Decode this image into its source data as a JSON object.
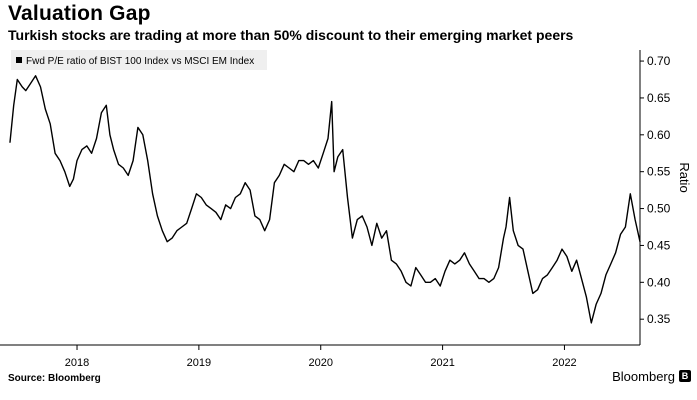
{
  "header": {
    "title": "Valuation Gap",
    "subtitle": "Turkish stocks are trading at more than 50% discount to their emerging market peers"
  },
  "footer": {
    "source": "Source: Bloomberg",
    "brand": "Bloomberg",
    "brand_logo_glyph": "B"
  },
  "colors": {
    "line": "#000000",
    "legend_bg": "#efefef",
    "axis": "#000000"
  },
  "chart_data": {
    "type": "line",
    "title": "Valuation Gap",
    "subtitle": "Turkish stocks are trading at more than 50% discount to their emerging market peers",
    "xlabel": "",
    "ylabel": "Ratio",
    "xlim": [
      2017.45,
      2022.62
    ],
    "ylim": [
      0.315,
      0.715
    ],
    "yaxis_side": "right",
    "legend": [
      {
        "name": "Fwd P/E ratio of BIST 100 Index vs MSCI EM Index",
        "position": "top-left"
      }
    ],
    "x_ticks": [
      {
        "value": 2018,
        "label": "2018"
      },
      {
        "value": 2019,
        "label": "2019"
      },
      {
        "value": 2020,
        "label": "2020"
      },
      {
        "value": 2021,
        "label": "2021"
      },
      {
        "value": 2022,
        "label": "2022"
      }
    ],
    "y_ticks": [
      {
        "value": 0.35,
        "label": "0.35"
      },
      {
        "value": 0.4,
        "label": "0.40"
      },
      {
        "value": 0.45,
        "label": "0.45"
      },
      {
        "value": 0.5,
        "label": "0.50"
      },
      {
        "value": 0.55,
        "label": "0.55"
      },
      {
        "value": 0.6,
        "label": "0.60"
      },
      {
        "value": 0.65,
        "label": "0.65"
      },
      {
        "value": 0.7,
        "label": "0.70"
      }
    ],
    "series": [
      {
        "name": "Fwd P/E ratio of BIST 100 Index vs MSCI EM Index",
        "x": [
          2017.45,
          2017.48,
          2017.51,
          2017.55,
          2017.58,
          2017.62,
          2017.66,
          2017.7,
          2017.74,
          2017.78,
          2017.82,
          2017.86,
          2017.9,
          2017.94,
          2017.97,
          2018.0,
          2018.04,
          2018.08,
          2018.12,
          2018.16,
          2018.2,
          2018.24,
          2018.27,
          2018.3,
          2018.34,
          2018.38,
          2018.42,
          2018.46,
          2018.5,
          2018.54,
          2018.58,
          2018.62,
          2018.66,
          2018.7,
          2018.74,
          2018.78,
          2018.82,
          2018.86,
          2018.9,
          2018.94,
          2018.98,
          2019.02,
          2019.06,
          2019.1,
          2019.14,
          2019.18,
          2019.22,
          2019.26,
          2019.3,
          2019.34,
          2019.38,
          2019.42,
          2019.46,
          2019.5,
          2019.54,
          2019.58,
          2019.62,
          2019.66,
          2019.7,
          2019.74,
          2019.78,
          2019.82,
          2019.86,
          2019.9,
          2019.94,
          2019.98,
          2020.02,
          2020.06,
          2020.09,
          2020.11,
          2020.14,
          2020.18,
          2020.22,
          2020.26,
          2020.3,
          2020.34,
          2020.38,
          2020.42,
          2020.46,
          2020.5,
          2020.54,
          2020.58,
          2020.62,
          2020.66,
          2020.7,
          2020.74,
          2020.78,
          2020.82,
          2020.86,
          2020.9,
          2020.94,
          2020.98,
          2021.02,
          2021.06,
          2021.1,
          2021.14,
          2021.18,
          2021.22,
          2021.26,
          2021.3,
          2021.34,
          2021.38,
          2021.42,
          2021.46,
          2021.5,
          2021.52,
          2021.55,
          2021.58,
          2021.62,
          2021.66,
          2021.7,
          2021.74,
          2021.78,
          2021.82,
          2021.86,
          2021.9,
          2021.94,
          2021.98,
          2022.02,
          2022.06,
          2022.1,
          2022.14,
          2022.18,
          2022.22,
          2022.26,
          2022.3,
          2022.34,
          2022.38,
          2022.42,
          2022.46,
          2022.5,
          2022.54,
          2022.58,
          2022.62
        ],
        "y": [
          0.59,
          0.64,
          0.675,
          0.665,
          0.66,
          0.67,
          0.68,
          0.665,
          0.635,
          0.615,
          0.575,
          0.565,
          0.55,
          0.53,
          0.54,
          0.565,
          0.58,
          0.585,
          0.575,
          0.595,
          0.63,
          0.64,
          0.6,
          0.58,
          0.56,
          0.555,
          0.545,
          0.565,
          0.61,
          0.6,
          0.565,
          0.52,
          0.49,
          0.47,
          0.455,
          0.46,
          0.47,
          0.475,
          0.48,
          0.5,
          0.52,
          0.515,
          0.505,
          0.5,
          0.495,
          0.485,
          0.505,
          0.5,
          0.515,
          0.52,
          0.535,
          0.525,
          0.49,
          0.485,
          0.47,
          0.485,
          0.535,
          0.545,
          0.56,
          0.555,
          0.55,
          0.565,
          0.565,
          0.56,
          0.565,
          0.555,
          0.575,
          0.595,
          0.645,
          0.55,
          0.57,
          0.58,
          0.515,
          0.46,
          0.485,
          0.49,
          0.475,
          0.45,
          0.48,
          0.46,
          0.47,
          0.43,
          0.425,
          0.415,
          0.4,
          0.395,
          0.42,
          0.41,
          0.4,
          0.4,
          0.405,
          0.395,
          0.415,
          0.43,
          0.425,
          0.43,
          0.44,
          0.425,
          0.415,
          0.405,
          0.405,
          0.4,
          0.405,
          0.42,
          0.46,
          0.475,
          0.515,
          0.47,
          0.45,
          0.445,
          0.415,
          0.385,
          0.39,
          0.405,
          0.41,
          0.42,
          0.43,
          0.445,
          0.435,
          0.415,
          0.43,
          0.405,
          0.38,
          0.345,
          0.37,
          0.385,
          0.41,
          0.425,
          0.44,
          0.465,
          0.475,
          0.52,
          0.485,
          0.455
        ]
      }
    ]
  }
}
